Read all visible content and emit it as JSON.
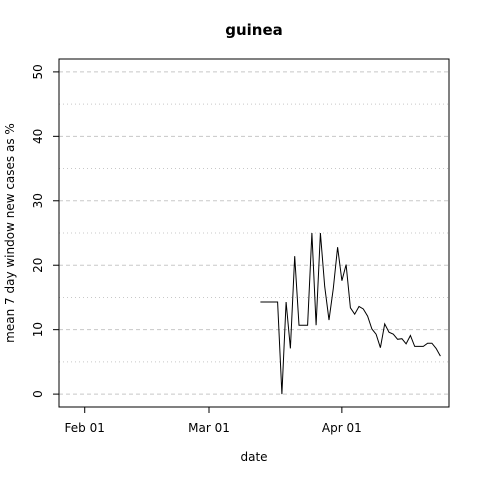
{
  "chart_data": {
    "type": "line",
    "title": "guinea",
    "xlabel": "date",
    "ylabel": "mean  7  day window new cases as %",
    "x_ticks": [
      "Feb 01",
      "Mar 01",
      "Apr 01"
    ],
    "y_ticks": [
      "0",
      "10",
      "20",
      "30",
      "40",
      "50"
    ],
    "xlim": [
      "2020-01-26",
      "2020-04-26"
    ],
    "ylim": [
      -2,
      52
    ],
    "grid": "horizontal dotted",
    "line_color": "#000000",
    "series": [
      {
        "x": [
          "2020-03-13",
          "2020-03-14",
          "2020-03-15",
          "2020-03-16",
          "2020-03-17",
          "2020-03-18",
          "2020-03-19",
          "2020-03-20",
          "2020-03-21",
          "2020-03-22",
          "2020-03-23",
          "2020-03-24",
          "2020-03-25",
          "2020-03-26",
          "2020-03-27",
          "2020-03-28",
          "2020-03-29",
          "2020-03-30",
          "2020-03-31",
          "2020-04-01",
          "2020-04-02",
          "2020-04-03",
          "2020-04-04",
          "2020-04-05",
          "2020-04-06",
          "2020-04-07",
          "2020-04-08",
          "2020-04-09",
          "2020-04-10",
          "2020-04-11",
          "2020-04-12",
          "2020-04-13",
          "2020-04-14",
          "2020-04-15",
          "2020-04-16",
          "2020-04-17",
          "2020-04-18",
          "2020-04-19",
          "2020-04-20",
          "2020-04-21",
          "2020-04-22",
          "2020-04-23",
          "2020-04-24"
        ],
        "y": [
          14.3,
          14.3,
          14.3,
          14.3,
          14.3,
          0,
          14.3,
          7.1,
          21.4,
          10.7,
          10.7,
          10.7,
          25,
          10.7,
          25,
          16.7,
          11.5,
          16.4,
          22.8,
          17.6,
          20.1,
          13.4,
          12.4,
          13.6,
          13.2,
          12.1,
          10.1,
          9.3,
          7.2,
          10.9,
          9.6,
          9.3,
          8.5,
          8.6,
          7.8,
          9.1,
          7.4,
          7.4,
          7.4,
          7.9,
          7.9,
          7.1,
          5.9
        ]
      }
    ]
  }
}
